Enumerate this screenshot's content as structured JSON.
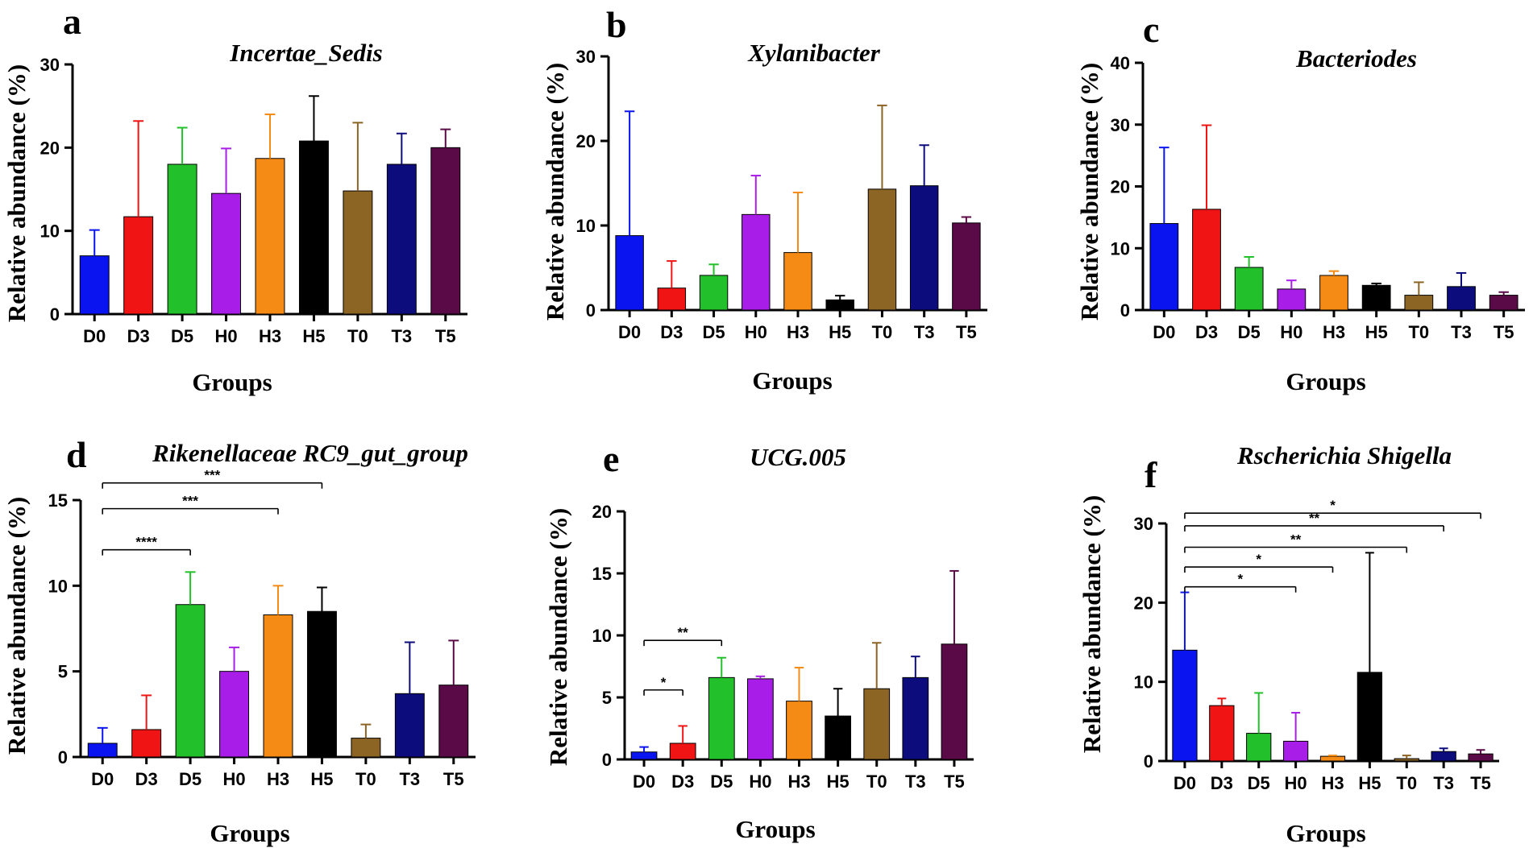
{
  "chart_data": [
    {
      "panel": "a",
      "type": "bar",
      "title": "Incertae_Sedis",
      "xlabel": "Groups",
      "ylabel": "Relative abundance (%)",
      "categories": [
        "D0",
        "D3",
        "D5",
        "H0",
        "H3",
        "H5",
        "T0",
        "T3",
        "T5"
      ],
      "values": [
        7.0,
        11.7,
        18.0,
        14.5,
        18.7,
        20.8,
        14.8,
        18.0,
        20.0
      ],
      "errors": [
        3.1,
        11.5,
        4.4,
        5.4,
        5.3,
        5.4,
        8.2,
        3.7,
        2.2
      ],
      "ylim": [
        0,
        30
      ],
      "yticks": [
        0,
        10,
        20,
        30
      ],
      "yticklabels": [
        "0",
        "10",
        "20",
        "30"
      ],
      "significance": []
    },
    {
      "panel": "b",
      "type": "bar",
      "title": "Xylanibacter",
      "xlabel": "Groups",
      "ylabel": "Relative abundance (%)",
      "categories": [
        "D0",
        "D3",
        "D5",
        "H0",
        "H3",
        "H5",
        "T0",
        "T3",
        "T5"
      ],
      "values": [
        8.8,
        2.6,
        4.1,
        11.3,
        6.8,
        1.2,
        14.3,
        14.7,
        10.3
      ],
      "errors": [
        14.7,
        3.2,
        1.3,
        4.6,
        7.1,
        0.5,
        9.9,
        4.8,
        0.7
      ],
      "ylim": [
        0,
        30
      ],
      "yticks": [
        0,
        10,
        20,
        30
      ],
      "yticklabels": [
        "0",
        "10",
        "20",
        "30"
      ],
      "significance": []
    },
    {
      "panel": "c",
      "type": "bar",
      "title": "Bacteriodes",
      "xlabel": "Groups",
      "ylabel": "Relative abundance (%)",
      "categories": [
        "D0",
        "D3",
        "D5",
        "H0",
        "H3",
        "H5",
        "T0",
        "T3",
        "T5"
      ],
      "values": [
        14.0,
        16.3,
        6.9,
        3.4,
        5.6,
        4.0,
        2.4,
        3.8,
        2.4
      ],
      "errors": [
        12.3,
        13.6,
        1.7,
        1.4,
        0.7,
        0.3,
        2.1,
        2.2,
        0.5
      ],
      "ylim": [
        0,
        40
      ],
      "yticks": [
        0,
        10,
        20,
        30,
        40
      ],
      "yticklabels": [
        "0",
        "10",
        "20",
        "30",
        "40"
      ],
      "significance": []
    },
    {
      "panel": "d",
      "type": "bar",
      "title": "Rikenellaceae RC9_gut_group",
      "xlabel": "Groups",
      "ylabel": "Relative abundance (%)",
      "categories": [
        "D0",
        "D3",
        "D5",
        "H0",
        "H3",
        "H5",
        "T0",
        "T3",
        "T5"
      ],
      "values": [
        0.8,
        1.6,
        8.9,
        5.0,
        8.3,
        8.5,
        1.1,
        3.7,
        4.2
      ],
      "errors": [
        0.9,
        2.0,
        1.9,
        1.4,
        1.7,
        1.4,
        0.8,
        3.0,
        2.6
      ],
      "ylim": [
        0,
        15
      ],
      "yticks": [
        0,
        5,
        10,
        15
      ],
      "yticklabels": [
        "0",
        "5",
        "10",
        "15"
      ],
      "significance": [
        {
          "from": 0,
          "to": 5,
          "label": "***",
          "level": 16.0
        },
        {
          "from": 0,
          "to": 4,
          "label": "***",
          "level": 14.5
        },
        {
          "from": 0,
          "to": 2,
          "label": "****",
          "level": 12.1
        }
      ]
    },
    {
      "panel": "e",
      "type": "bar",
      "title": "UCG.005",
      "xlabel": "Groups",
      "ylabel": "Relative abundance (%)",
      "categories": [
        "D0",
        "D3",
        "D5",
        "H0",
        "H3",
        "H5",
        "T0",
        "T3",
        "T5"
      ],
      "values": [
        0.6,
        1.3,
        6.6,
        6.5,
        4.7,
        3.5,
        5.7,
        6.6,
        9.3
      ],
      "errors": [
        0.4,
        1.4,
        1.6,
        0.2,
        2.7,
        2.2,
        3.7,
        1.7,
        5.9
      ],
      "ylim": [
        0,
        20
      ],
      "yticks": [
        0,
        5,
        10,
        15,
        20
      ],
      "yticklabels": [
        "0",
        "5",
        "10",
        "15",
        "20"
      ],
      "significance": [
        {
          "from": 0,
          "to": 2,
          "label": "**",
          "level": 9.6
        },
        {
          "from": 0,
          "to": 1,
          "label": "*",
          "level": 5.6
        }
      ]
    },
    {
      "panel": "f",
      "type": "bar",
      "title": "Rscherichia Shigella",
      "xlabel": "Groups",
      "ylabel": "Relative abundance (%)",
      "categories": [
        "D0",
        "D3",
        "D5",
        "H0",
        "H3",
        "H5",
        "T0",
        "T3",
        "T5"
      ],
      "values": [
        14.0,
        7.0,
        3.5,
        2.5,
        0.6,
        11.2,
        0.3,
        1.2,
        0.9
      ],
      "errors": [
        7.3,
        0.9,
        5.1,
        3.6,
        0.1,
        15.1,
        0.4,
        0.4,
        0.5
      ],
      "ylim": [
        0,
        30
      ],
      "yticks": [
        0,
        10,
        20,
        30
      ],
      "yticklabels": [
        "0",
        "10",
        "20",
        "30"
      ],
      "significance": [
        {
          "from": 0,
          "to": 8,
          "label": "*",
          "level": 31.3
        },
        {
          "from": 0,
          "to": 7,
          "label": "**",
          "level": 29.7
        },
        {
          "from": 0,
          "to": 6,
          "label": "**",
          "level": 27.0
        },
        {
          "from": 0,
          "to": 4,
          "label": "*",
          "level": 24.5
        },
        {
          "from": 0,
          "to": 3,
          "label": "*",
          "level": 22.0
        }
      ]
    }
  ],
  "colors": {
    "bars": [
      "#0a14f0",
      "#f01414",
      "#22c02a",
      "#a81ee8",
      "#f58a14",
      "#000000",
      "#8c6424",
      "#0c0c7c",
      "#5a0a46"
    ],
    "axis": "#000000"
  }
}
